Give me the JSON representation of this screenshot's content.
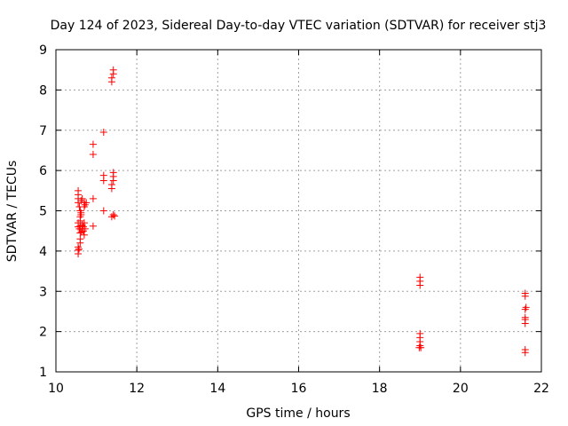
{
  "chart_data": {
    "type": "scatter",
    "title": "Day 124 of 2023, Sidereal Day-to-day VTEC variation (SDTVAR) for receiver stj3",
    "xlabel": "GPS time / hours",
    "ylabel": "SDTVAR / TECUs",
    "xlim": [
      10,
      22
    ],
    "ylim": [
      1,
      9
    ],
    "xticks": [
      10,
      12,
      14,
      16,
      18,
      20,
      22
    ],
    "yticks": [
      1,
      2,
      3,
      4,
      5,
      6,
      7,
      8,
      9
    ],
    "grid": true,
    "marker": "plus",
    "color": "#ff0000",
    "series": [
      {
        "name": "SDTVAR",
        "points": [
          [
            10.55,
            3.93
          ],
          [
            10.55,
            4.02
          ],
          [
            10.55,
            4.1
          ],
          [
            10.57,
            4.05
          ],
          [
            10.6,
            4.2
          ],
          [
            10.6,
            4.3
          ],
          [
            10.6,
            4.45
          ],
          [
            10.58,
            4.55
          ],
          [
            10.55,
            4.6
          ],
          [
            10.55,
            4.7
          ],
          [
            10.6,
            4.75
          ],
          [
            10.6,
            4.85
          ],
          [
            10.62,
            4.9
          ],
          [
            10.6,
            5.0
          ],
          [
            10.58,
            5.1
          ],
          [
            10.55,
            5.2
          ],
          [
            10.55,
            5.3
          ],
          [
            10.55,
            5.4
          ],
          [
            10.55,
            5.5
          ],
          [
            10.62,
            5.25
          ],
          [
            10.65,
            4.55
          ],
          [
            10.65,
            4.65
          ],
          [
            10.68,
            4.5
          ],
          [
            10.68,
            4.6
          ],
          [
            10.7,
            4.7
          ],
          [
            10.7,
            4.4
          ],
          [
            10.72,
            4.55
          ],
          [
            10.62,
            4.95
          ],
          [
            10.7,
            5.1
          ],
          [
            10.7,
            5.2
          ],
          [
            10.65,
            5.3
          ],
          [
            10.72,
            5.15
          ],
          [
            10.75,
            5.2
          ],
          [
            10.6,
            4.62
          ],
          [
            10.63,
            4.48
          ],
          [
            10.92,
            6.65
          ],
          [
            10.92,
            6.4
          ],
          [
            10.92,
            5.3
          ],
          [
            10.92,
            4.62
          ],
          [
            11.18,
            6.95
          ],
          [
            11.18,
            5.88
          ],
          [
            11.18,
            5.75
          ],
          [
            11.18,
            5.0
          ],
          [
            11.38,
            8.2
          ],
          [
            11.38,
            8.3
          ],
          [
            11.42,
            8.4
          ],
          [
            11.42,
            8.5
          ],
          [
            11.38,
            5.55
          ],
          [
            11.38,
            5.65
          ],
          [
            11.42,
            5.75
          ],
          [
            11.42,
            5.85
          ],
          [
            11.42,
            5.95
          ],
          [
            11.38,
            4.85
          ],
          [
            11.42,
            4.9
          ],
          [
            11.45,
            4.87
          ],
          [
            19.0,
            3.15
          ],
          [
            19.0,
            3.25
          ],
          [
            19.0,
            3.35
          ],
          [
            18.98,
            1.6
          ],
          [
            19.0,
            1.65
          ],
          [
            19.02,
            1.6
          ],
          [
            19.0,
            1.75
          ],
          [
            19.0,
            1.85
          ],
          [
            19.0,
            1.95
          ],
          [
            21.6,
            2.88
          ],
          [
            21.6,
            2.95
          ],
          [
            21.6,
            2.55
          ],
          [
            21.62,
            2.6
          ],
          [
            21.6,
            2.35
          ],
          [
            21.6,
            2.3
          ],
          [
            21.6,
            2.2
          ],
          [
            21.6,
            1.55
          ],
          [
            21.6,
            1.48
          ]
        ]
      }
    ]
  }
}
